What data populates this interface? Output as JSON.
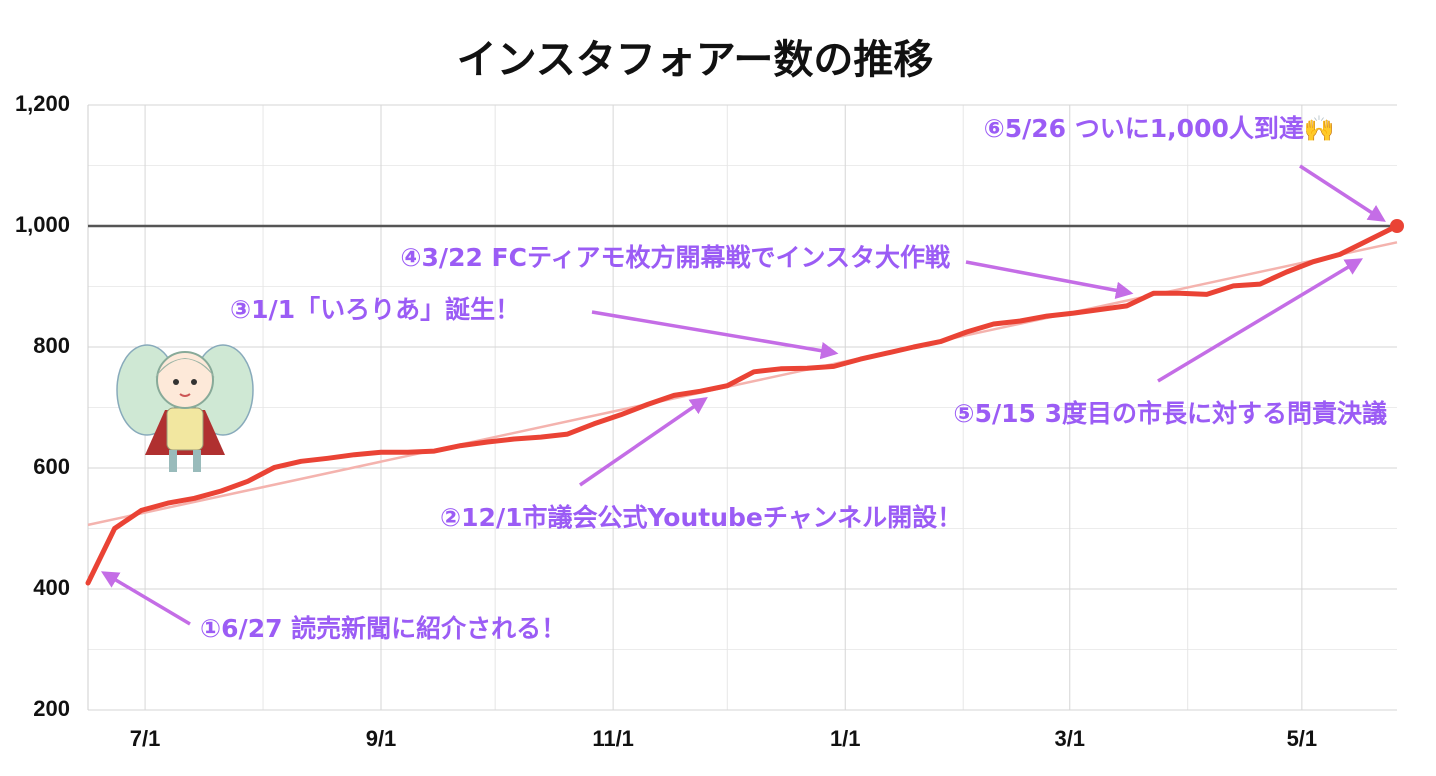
{
  "chart_data": {
    "type": "line",
    "title": "インスタフォアー数の推移",
    "x": [
      "6/16",
      "6/23",
      "6/30",
      "7/7",
      "7/14",
      "7/21",
      "7/28",
      "8/4",
      "8/11",
      "8/18",
      "8/25",
      "9/1",
      "9/8",
      "9/15",
      "9/22",
      "9/29",
      "10/6",
      "10/13",
      "10/20",
      "10/27",
      "11/3",
      "11/10",
      "11/17",
      "11/24",
      "12/1",
      "12/8",
      "12/15",
      "12/22",
      "12/29",
      "1/5",
      "1/12",
      "1/19",
      "1/26",
      "2/2",
      "2/9",
      "2/16",
      "2/23",
      "3/2",
      "3/9",
      "3/16",
      "3/23",
      "3/30",
      "4/6",
      "4/13",
      "4/20",
      "4/27",
      "5/4",
      "5/11",
      "5/18",
      "5/26"
    ],
    "values": [
      410,
      500,
      530,
      542,
      550,
      562,
      578,
      601,
      611,
      616,
      622,
      626,
      626,
      628,
      637,
      643,
      648,
      651,
      656,
      673,
      688,
      705,
      720,
      727,
      736,
      759,
      764,
      765,
      768,
      780,
      790,
      800,
      809,
      825,
      838,
      843,
      851,
      856,
      862,
      868,
      889,
      889,
      887,
      901,
      904,
      924,
      941,
      953,
      975,
      1000
    ],
    "color": "#ea4335",
    "highlight_last": true,
    "trendline": {
      "x": [
        "6/16",
        "5/26"
      ],
      "values": [
        506,
        973
      ],
      "color": "#f4b3ae"
    },
    "reference_line": {
      "value": 1000,
      "color": "#555555"
    },
    "xlim": [
      "6/16",
      "5/26"
    ],
    "xticks": [
      "7/1",
      "9/1",
      "11/1",
      "1/1",
      "3/1",
      "5/1"
    ],
    "minor_xticks": [
      "8/1",
      "10/1",
      "12/1",
      "2/1",
      "4/1"
    ],
    "ylim": [
      200,
      1200
    ],
    "yticks": [
      200,
      400,
      600,
      800,
      {
        "value": 1000,
        "label": "1,000"
      },
      {
        "value": 1200,
        "label": "1,200"
      }
    ],
    "minor_yticks": [
      300,
      500,
      700,
      900,
      1100
    ],
    "grid": true,
    "annotations": [
      "⑥5/26 ついに1,000人到達🙌",
      "④3/22 FCティアモ枚方開幕戦でインスタ大作戦",
      "③1/1「いろりあ」誕生！",
      "⑤5/15 3度目の市長に対する問責決議",
      "②12/1市議会公式Youtubeチャンネル開設！",
      "①6/27 読売新聞に紹介される！"
    ]
  }
}
